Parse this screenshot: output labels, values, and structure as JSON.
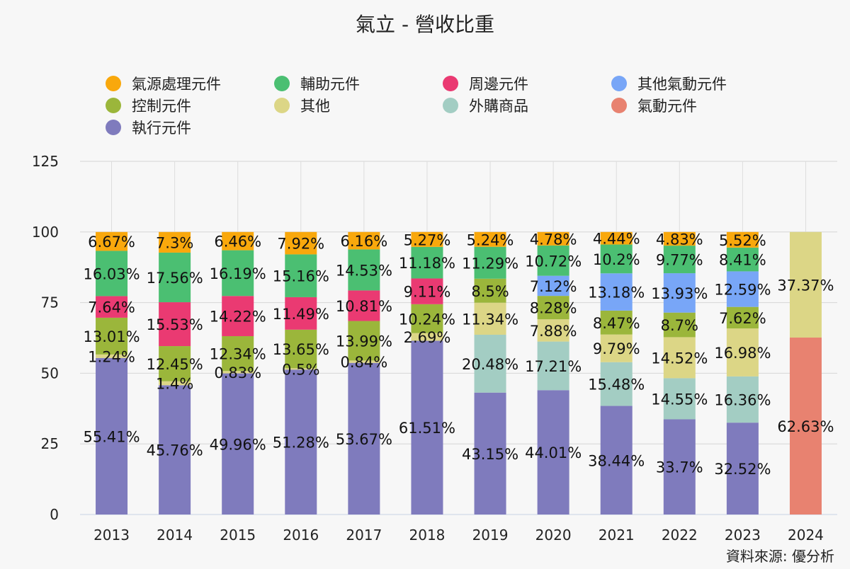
{
  "source": "資料來源: 優分析",
  "chart_data": {
    "type": "bar",
    "stacked": true,
    "title": "氣立 - 營收比重",
    "categories": [
      "2013",
      "2014",
      "2015",
      "2016",
      "2017",
      "2018",
      "2019",
      "2020",
      "2021",
      "2022",
      "2023",
      "2024"
    ],
    "ylim": [
      0,
      125
    ],
    "yticks": [
      0,
      25,
      50,
      75,
      100,
      125
    ],
    "grid": true,
    "legend_position": "top",
    "legend_order": [
      "氣源處理元件",
      "輔助元件",
      "周邊元件",
      "其他氣動元件",
      "控制元件",
      "其他",
      "外購商品",
      "氣動元件",
      "執行元件"
    ],
    "series": [
      {
        "name": "執行元件",
        "color": "#7f7bbd",
        "values": [
          55.41,
          45.76,
          49.96,
          51.28,
          53.67,
          61.51,
          43.15,
          44.01,
          38.44,
          33.7,
          32.52,
          null
        ]
      },
      {
        "name": "氣動元件",
        "color": "#e88270",
        "values": [
          null,
          null,
          null,
          null,
          null,
          null,
          null,
          null,
          null,
          null,
          null,
          62.63
        ]
      },
      {
        "name": "外購商品",
        "color": "#a3cdc3",
        "values": [
          null,
          null,
          null,
          null,
          null,
          null,
          20.48,
          17.21,
          15.48,
          14.55,
          16.36,
          null
        ]
      },
      {
        "name": "其他",
        "color": "#dcd686",
        "values": [
          1.24,
          1.4,
          0.83,
          0.5,
          0.84,
          2.69,
          11.34,
          7.88,
          9.79,
          14.52,
          16.98,
          37.37
        ]
      },
      {
        "name": "控制元件",
        "color": "#9bb63b",
        "values": [
          13.01,
          12.45,
          12.34,
          13.65,
          13.99,
          10.24,
          8.5,
          8.28,
          8.47,
          8.7,
          7.62,
          null
        ]
      },
      {
        "name": "其他氣動元件",
        "color": "#78a6f7",
        "values": [
          null,
          null,
          null,
          null,
          null,
          null,
          null,
          7.12,
          13.18,
          13.93,
          12.59,
          null
        ]
      },
      {
        "name": "周邊元件",
        "color": "#ea3a72",
        "values": [
          7.64,
          15.53,
          14.22,
          11.49,
          10.81,
          9.11,
          null,
          null,
          null,
          null,
          null,
          null
        ]
      },
      {
        "name": "輔助元件",
        "color": "#4bbf72",
        "values": [
          16.03,
          17.56,
          16.19,
          15.16,
          14.53,
          11.18,
          11.29,
          10.72,
          10.2,
          9.77,
          8.41,
          null
        ]
      },
      {
        "name": "氣源處理元件",
        "color": "#f9a80c",
        "values": [
          6.67,
          7.3,
          6.46,
          7.92,
          6.16,
          5.27,
          5.24,
          4.78,
          4.44,
          4.83,
          5.52,
          null
        ]
      }
    ]
  }
}
